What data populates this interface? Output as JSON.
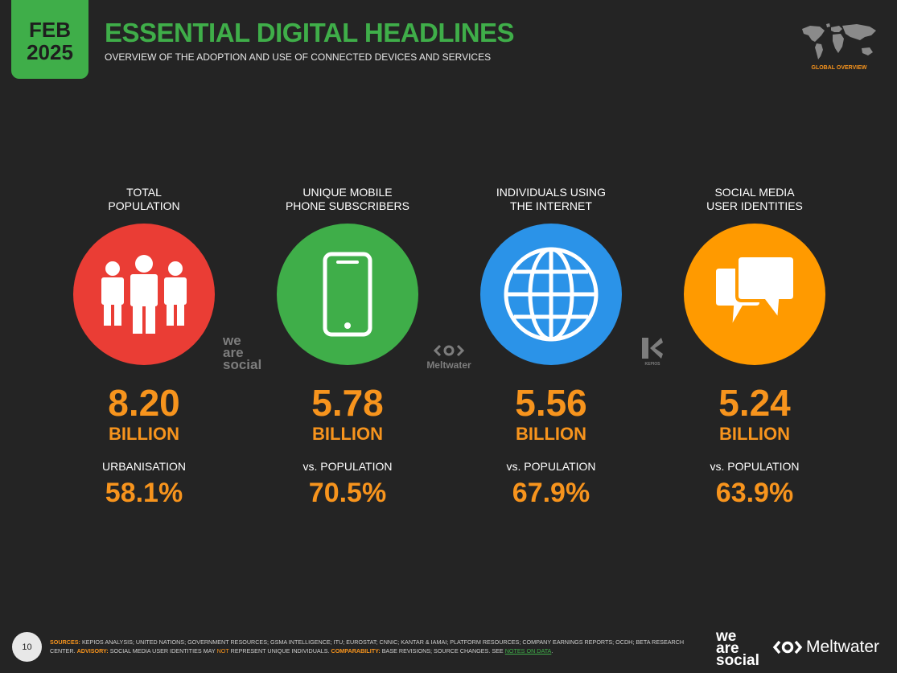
{
  "header": {
    "badge_month": "FEB",
    "badge_year": "2025",
    "title": "ESSENTIAL DIGITAL HEADLINES",
    "subtitle": "OVERVIEW OF THE ADOPTION AND USE OF CONNECTED DEVICES AND SERVICES",
    "map_label": "GLOBAL OVERVIEW"
  },
  "colors": {
    "background": "#242424",
    "accent_green": "#3fae49",
    "accent_orange": "#f7941d",
    "population_red": "#ea3d35",
    "mobile_green": "#3fae49",
    "internet_blue": "#2b93e8",
    "social_orange": "#ff9a00"
  },
  "stats": [
    {
      "label_line1": "TOTAL",
      "label_line2": "POPULATION",
      "icon": "people-icon",
      "value": "8.20",
      "unit": "BILLION",
      "sub_label": "URBANISATION",
      "pct": "58.1%"
    },
    {
      "label_line1": "UNIQUE MOBILE",
      "label_line2": "PHONE SUBSCRIBERS",
      "icon": "mobile-phone-icon",
      "value": "5.78",
      "unit": "BILLION",
      "sub_label": "vs. POPULATION",
      "pct": "70.5%"
    },
    {
      "label_line1": "INDIVIDUALS USING",
      "label_line2": "THE INTERNET",
      "icon": "globe-icon",
      "value": "5.56",
      "unit": "BILLION",
      "sub_label": "vs. POPULATION",
      "pct": "67.9%"
    },
    {
      "label_line1": "SOCIAL MEDIA",
      "label_line2": "USER IDENTITIES",
      "icon": "chat-bubbles-icon",
      "value": "5.24",
      "unit": "BILLION",
      "sub_label": "vs. POPULATION",
      "pct": "63.9%"
    }
  ],
  "watermarks": {
    "we": "we",
    "are": "are",
    "social": "social",
    "meltwater": "Meltwater",
    "kepios": "KEPIOS"
  },
  "footer": {
    "page_number": "10",
    "sources_label": "SOURCES:",
    "sources_text": "KEPIOS ANALYSIS; UNITED NATIONS; GOVERNMENT RESOURCES; GSMA INTELLIGENCE; ITU; EUROSTAT; CNNIC; KANTAR & IAMAI; PLATFORM RESOURCES; COMPANY EARNINGS REPORTS; OCDH; BETA RESEARCH CENTER.",
    "advisory_label": "ADVISORY:",
    "advisory_text_a": "SOCIAL MEDIA USER IDENTITIES MAY",
    "advisory_not": "NOT",
    "advisory_text_b": "REPRESENT UNIQUE INDIVIDUALS.",
    "comparability_label": "COMPARABILITY:",
    "comparability_text": "BASE REVISIONS; SOURCE CHANGES. SEE",
    "notes_link": "NOTES ON DATA",
    "brand_we": "we",
    "brand_are": "are",
    "brand_social": "social",
    "brand_meltwater": "Meltwater"
  }
}
